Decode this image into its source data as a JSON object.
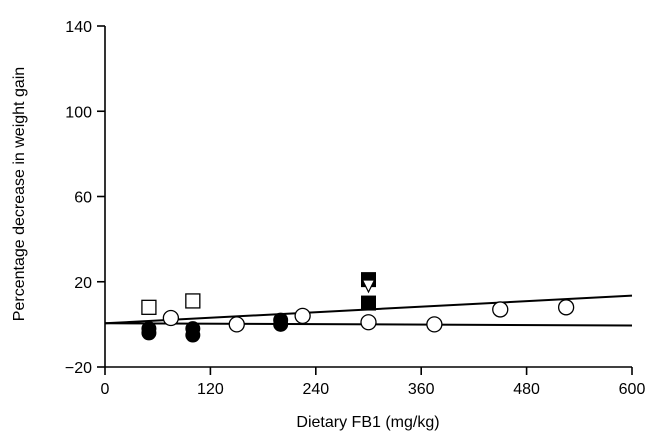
{
  "chart_data": {
    "type": "scatter",
    "title": "",
    "xlabel": "Dietary FB1 (mg/kg)",
    "ylabel": "Percentage decrease in weight gain",
    "xlim": [
      0,
      600
    ],
    "ylim": [
      -20,
      140
    ],
    "xticks": [
      0,
      120,
      240,
      360,
      480,
      600
    ],
    "yticks": [
      -20,
      20,
      60,
      100,
      140
    ],
    "xtick_labels": [
      "0",
      "120",
      "240",
      "360",
      "480",
      "600"
    ],
    "ytick_labels": [
      "−20",
      "20",
      "60",
      "100",
      "140"
    ],
    "grid": false,
    "legend": "none",
    "series": [
      {
        "marker": "open-circle",
        "points": [
          [
            75,
            3
          ],
          [
            150,
            0
          ],
          [
            225,
            4
          ],
          [
            300,
            1
          ],
          [
            375,
            0
          ],
          [
            450,
            7
          ],
          [
            525,
            8
          ]
        ]
      },
      {
        "marker": "filled-circle",
        "points": [
          [
            50,
            -4
          ],
          [
            50,
            -2
          ],
          [
            100,
            -5
          ],
          [
            100,
            -2
          ],
          [
            200,
            0
          ],
          [
            200,
            2
          ]
        ]
      },
      {
        "marker": "open-square",
        "points": [
          [
            50,
            8
          ],
          [
            100,
            11
          ]
        ]
      },
      {
        "marker": "filled-square",
        "points": [
          [
            300,
            21
          ],
          [
            300,
            10
          ]
        ]
      },
      {
        "marker": "open-triangle",
        "points": [
          [
            300,
            18
          ]
        ]
      }
    ],
    "lines": [
      {
        "x": [
          0,
          600
        ],
        "y": [
          0.5,
          13.5
        ]
      },
      {
        "x": [
          0,
          600
        ],
        "y": [
          0.5,
          -0.5
        ]
      }
    ],
    "colors": {
      "ink": "#000000",
      "background": "#ffffff"
    }
  }
}
